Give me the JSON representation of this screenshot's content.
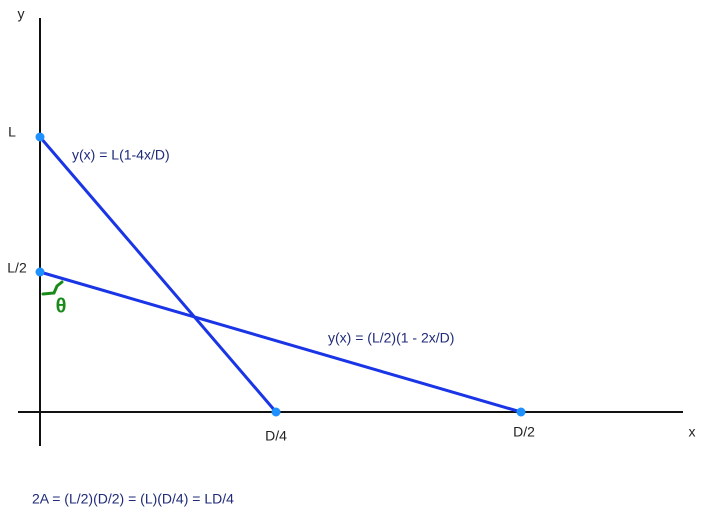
{
  "axes": {
    "x": "x",
    "y": "y"
  },
  "y_labels": [
    "L",
    "L/2"
  ],
  "x_labels": [
    "D/4",
    "D/2"
  ],
  "lines": [
    {
      "label": "y(x) = L(1-4x/D)"
    },
    {
      "label": "y(x) = (L/2)(1 - 2x/D)"
    }
  ],
  "angle": "θ",
  "footer": "2A = (L/2)(D/2) = (L)(D/4) = LD/4"
}
